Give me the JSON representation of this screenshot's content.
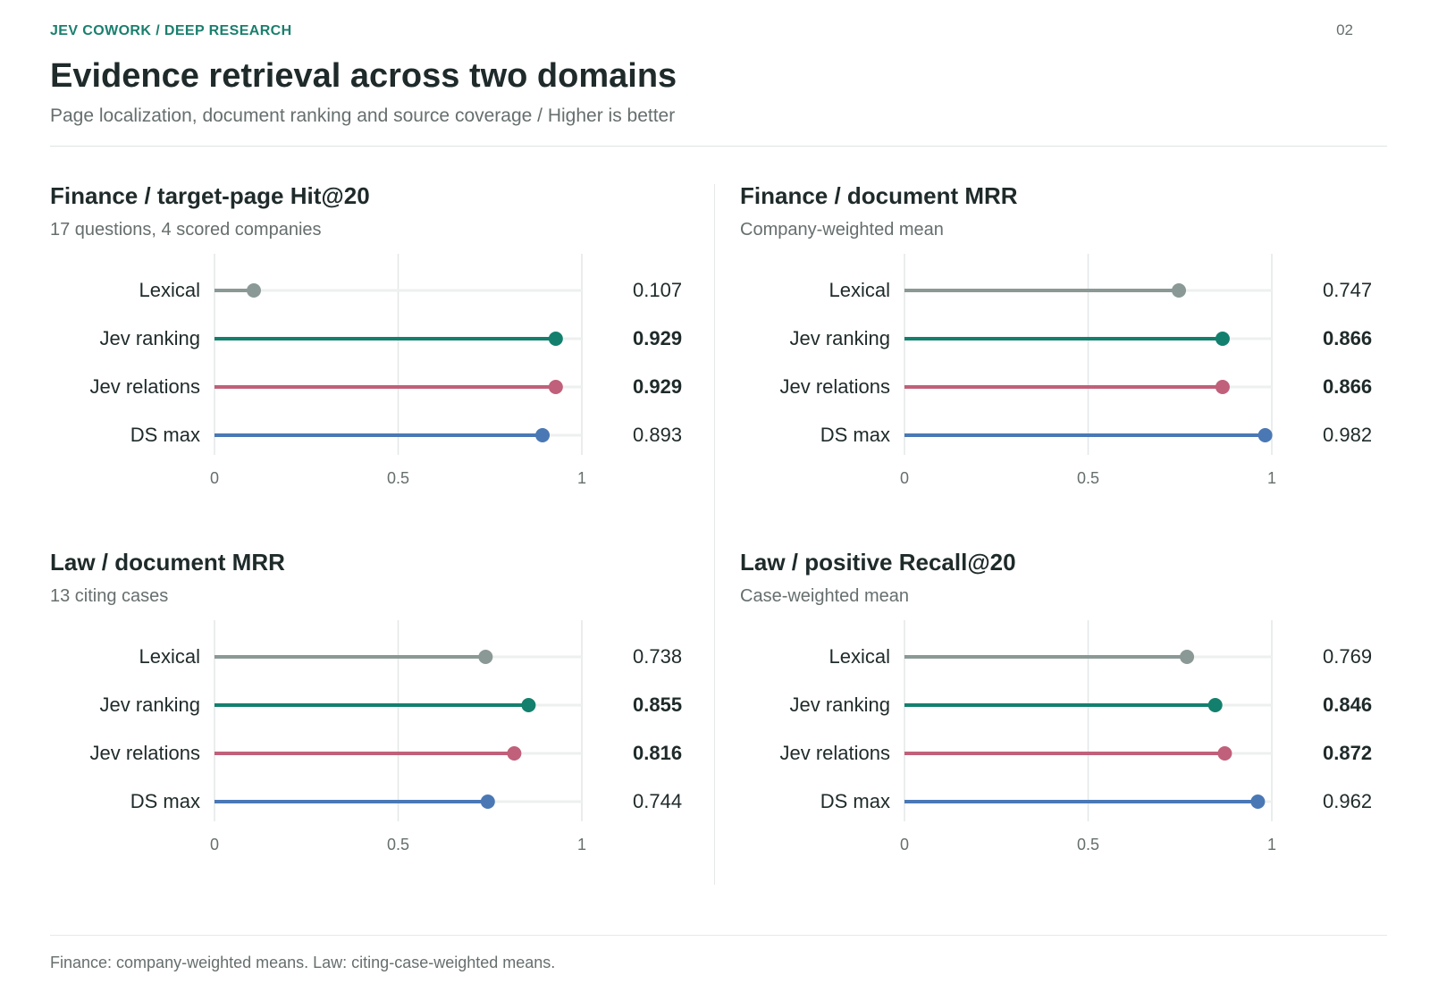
{
  "header": {
    "kicker": "JEV COWORK  /  DEEP RESEARCH",
    "page_number": "02",
    "title": "Evidence retrieval across two domains",
    "subtitle": "Page localization, document ranking and source coverage  /  Higher is better"
  },
  "footer": {
    "note": "Finance: company-weighted means. Law: citing-case-weighted means."
  },
  "colors": {
    "Lexical": "#8a9995",
    "Jev ranking": "#13806e",
    "Jev relations": "#c0607a",
    "DS max": "#4a78b5"
  },
  "chart_data": [
    {
      "type": "lollipop",
      "title": "Finance  /  target-page Hit@20",
      "subtitle": "17 questions, 4 scored companies",
      "categories": [
        "Lexical",
        "Jev ranking",
        "Jev relations",
        "DS max"
      ],
      "values": [
        0.107,
        0.929,
        0.929,
        0.893
      ],
      "value_labels": [
        "0.107",
        "0.929",
        "0.929",
        "0.893"
      ],
      "bold": [
        false,
        true,
        true,
        false
      ],
      "xlim": [
        0,
        1
      ],
      "xticks": [
        0,
        0.5,
        1
      ],
      "xtick_labels": [
        "0",
        "0.5",
        "1"
      ],
      "grid": true
    },
    {
      "type": "lollipop",
      "title": "Finance  /  document MRR",
      "subtitle": "Company-weighted mean",
      "categories": [
        "Lexical",
        "Jev ranking",
        "Jev relations",
        "DS max"
      ],
      "values": [
        0.747,
        0.866,
        0.866,
        0.982
      ],
      "value_labels": [
        "0.747",
        "0.866",
        "0.866",
        "0.982"
      ],
      "bold": [
        false,
        true,
        true,
        false
      ],
      "xlim": [
        0,
        1
      ],
      "xticks": [
        0,
        0.5,
        1
      ],
      "xtick_labels": [
        "0",
        "0.5",
        "1"
      ],
      "grid": true
    },
    {
      "type": "lollipop",
      "title": "Law  /  document MRR",
      "subtitle": "13 citing cases",
      "categories": [
        "Lexical",
        "Jev ranking",
        "Jev relations",
        "DS max"
      ],
      "values": [
        0.738,
        0.855,
        0.816,
        0.744
      ],
      "value_labels": [
        "0.738",
        "0.855",
        "0.816",
        "0.744"
      ],
      "bold": [
        false,
        true,
        true,
        false
      ],
      "xlim": [
        0,
        1
      ],
      "xticks": [
        0,
        0.5,
        1
      ],
      "xtick_labels": [
        "0",
        "0.5",
        "1"
      ],
      "grid": true
    },
    {
      "type": "lollipop",
      "title": "Law  /  positive Recall@20",
      "subtitle": "Case-weighted mean",
      "categories": [
        "Lexical",
        "Jev ranking",
        "Jev relations",
        "DS max"
      ],
      "values": [
        0.769,
        0.846,
        0.872,
        0.962
      ],
      "value_labels": [
        "0.769",
        "0.846",
        "0.872",
        "0.962"
      ],
      "bold": [
        false,
        true,
        true,
        false
      ],
      "xlim": [
        0,
        1
      ],
      "xticks": [
        0,
        0.5,
        1
      ],
      "xtick_labels": [
        "0",
        "0.5",
        "1"
      ],
      "grid": true
    }
  ]
}
